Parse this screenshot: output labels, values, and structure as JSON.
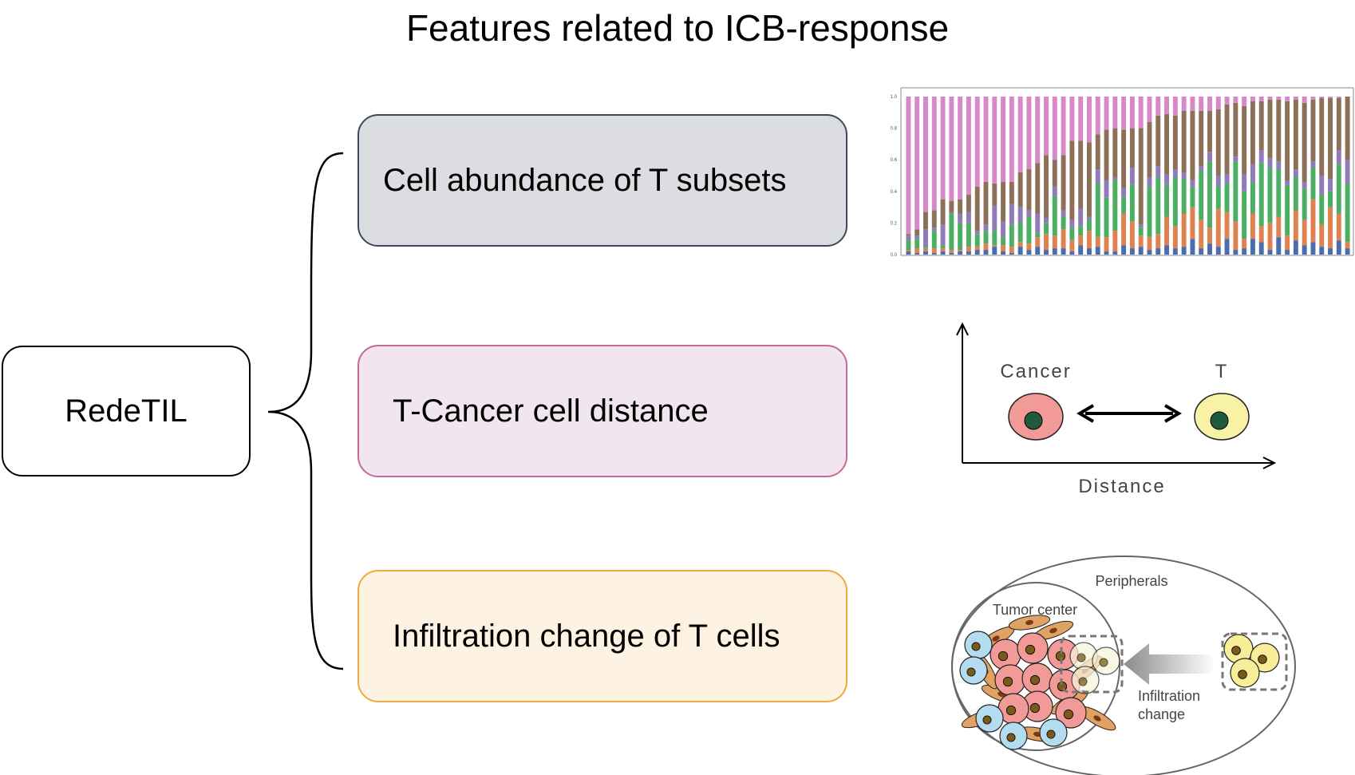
{
  "title": "Features related to ICB-response",
  "root": {
    "label": "RedeTIL"
  },
  "features": [
    {
      "label": "Cell abundance of T subsets"
    },
    {
      "label": "T-Cancer cell distance"
    },
    {
      "label": "Infiltration change of T cells"
    }
  ],
  "chart_data": {
    "type": "bar",
    "stacked": true,
    "ylim": [
      0,
      1
    ],
    "yticks": [
      "0.0",
      "0.2",
      "0.4",
      "0.6",
      "0.8",
      "1.0"
    ],
    "colors": {
      "blue": "#4a6db0",
      "orange": "#e0824f",
      "green": "#4cae62",
      "purple": "#8f7bb8",
      "brown": "#8c7158",
      "pink": "#d887c8"
    },
    "series_colors": [
      "#4a6db0",
      "#e0824f",
      "#4cae62",
      "#8f7bb8",
      "#8c7158",
      "#d887c8"
    ],
    "bars": [
      [
        0.02,
        0.01,
        0.06,
        0.03,
        0.01,
        0.87
      ],
      [
        0.01,
        0.03,
        0.06,
        0.02,
        0.04,
        0.84
      ],
      [
        0.02,
        0.02,
        0.01,
        0.11,
        0.11,
        0.73
      ],
      [
        0.01,
        0.03,
        0.11,
        0.02,
        0.11,
        0.72
      ],
      [
        0.02,
        0.02,
        0.02,
        0.13,
        0.16,
        0.65
      ],
      [
        0.01,
        0.02,
        0.23,
        0.01,
        0.07,
        0.66
      ],
      [
        0.02,
        0.01,
        0.17,
        0.06,
        0.09,
        0.65
      ],
      [
        0.02,
        0.03,
        0.15,
        0.07,
        0.11,
        0.62
      ],
      [
        0.03,
        0.02,
        0.08,
        0.02,
        0.28,
        0.57
      ],
      [
        0.03,
        0.04,
        0.08,
        0.04,
        0.27,
        0.54
      ],
      [
        0.05,
        0.01,
        0.09,
        0.16,
        0.14,
        0.55
      ],
      [
        0.02,
        0.04,
        0.05,
        0.1,
        0.25,
        0.54
      ],
      [
        0.01,
        0.04,
        0.14,
        0.13,
        0.14,
        0.54
      ],
      [
        0.05,
        0.03,
        0.12,
        0.1,
        0.22,
        0.48
      ],
      [
        0.03,
        0.04,
        0.17,
        0.04,
        0.26,
        0.46
      ],
      [
        0.05,
        0.06,
        0.03,
        0.12,
        0.32,
        0.42
      ],
      [
        0.03,
        0.1,
        0.07,
        0.03,
        0.4,
        0.37
      ],
      [
        0.04,
        0.08,
        0.25,
        0.06,
        0.17,
        0.4
      ],
      [
        0.04,
        0.12,
        0.08,
        0.04,
        0.35,
        0.37
      ],
      [
        0.02,
        0.07,
        0.08,
        0.05,
        0.5,
        0.28
      ],
      [
        0.06,
        0.06,
        0.06,
        0.11,
        0.43,
        0.28
      ],
      [
        0.04,
        0.11,
        0.07,
        0.02,
        0.47,
        0.29
      ],
      [
        0.05,
        0.06,
        0.34,
        0.09,
        0.22,
        0.24
      ],
      [
        0.02,
        0.09,
        0.25,
        0.11,
        0.32,
        0.21
      ],
      [
        0.02,
        0.13,
        0.32,
        0.02,
        0.31,
        0.2
      ],
      [
        0.06,
        0.2,
        0.1,
        0.06,
        0.37,
        0.21
      ],
      [
        0.04,
        0.17,
        0.23,
        0.11,
        0.25,
        0.2
      ],
      [
        0.05,
        0.07,
        0.05,
        0.02,
        0.61,
        0.2
      ],
      [
        0.03,
        0.08,
        0.32,
        0.06,
        0.35,
        0.16
      ],
      [
        0.04,
        0.09,
        0.36,
        0.07,
        0.32,
        0.12
      ],
      [
        0.06,
        0.18,
        0.2,
        0.07,
        0.38,
        0.11
      ],
      [
        0.04,
        0.14,
        0.31,
        0.05,
        0.34,
        0.12
      ],
      [
        0.05,
        0.21,
        0.22,
        0.04,
        0.39,
        0.09
      ],
      [
        0.1,
        0.2,
        0.13,
        0.04,
        0.44,
        0.09
      ],
      [
        0.04,
        0.18,
        0.31,
        0.03,
        0.35,
        0.09
      ],
      [
        0.07,
        0.1,
        0.42,
        0.06,
        0.26,
        0.09
      ],
      [
        0.05,
        0.24,
        0.14,
        0.07,
        0.42,
        0.08
      ],
      [
        0.1,
        0.17,
        0.18,
        0.06,
        0.44,
        0.05
      ],
      [
        0.03,
        0.18,
        0.38,
        0.03,
        0.34,
        0.04
      ],
      [
        0.04,
        0.06,
        0.3,
        0.11,
        0.43,
        0.06
      ],
      [
        0.1,
        0.16,
        0.2,
        0.11,
        0.4,
        0.03
      ],
      [
        0.08,
        0.1,
        0.4,
        0.08,
        0.31,
        0.03
      ],
      [
        0.03,
        0.17,
        0.35,
        0.06,
        0.37,
        0.02
      ],
      [
        0.11,
        0.13,
        0.3,
        0.05,
        0.39,
        0.02
      ],
      [
        0.03,
        0.09,
        0.32,
        0.03,
        0.5,
        0.03
      ],
      [
        0.09,
        0.19,
        0.21,
        0.05,
        0.44,
        0.02
      ],
      [
        0.06,
        0.16,
        0.2,
        0.04,
        0.5,
        0.04
      ],
      [
        0.08,
        0.27,
        0.2,
        0.04,
        0.39,
        0.02
      ],
      [
        0.05,
        0.14,
        0.19,
        0.12,
        0.49,
        0.01
      ],
      [
        0.04,
        0.26,
        0.1,
        0.08,
        0.51,
        0.01
      ],
      [
        0.09,
        0.17,
        0.31,
        0.09,
        0.33,
        0.01
      ],
      [
        0.04,
        0.04,
        0.37,
        0.15,
        0.4,
        0.0
      ]
    ]
  },
  "distance_panel": {
    "cancer_label": "Cancer",
    "t_label": "T",
    "axis_label": "Distance",
    "colors": {
      "cancer_fill": "#f19a97",
      "t_fill": "#f8f2a7",
      "nucleus": "#1f5a3c"
    }
  },
  "infiltration_panel": {
    "peripherals_label": "Peripherals",
    "tumor_center_label": "Tumor center",
    "change_label_line1": "Infiltration",
    "change_label_line2": "change",
    "colors": {
      "red_cell": "#f19a97",
      "blue_cell": "#b4dcf1",
      "yellow_cell": "#f8ed99",
      "stroma": "#e0a263",
      "nucleus": "#7a5a1a"
    }
  }
}
